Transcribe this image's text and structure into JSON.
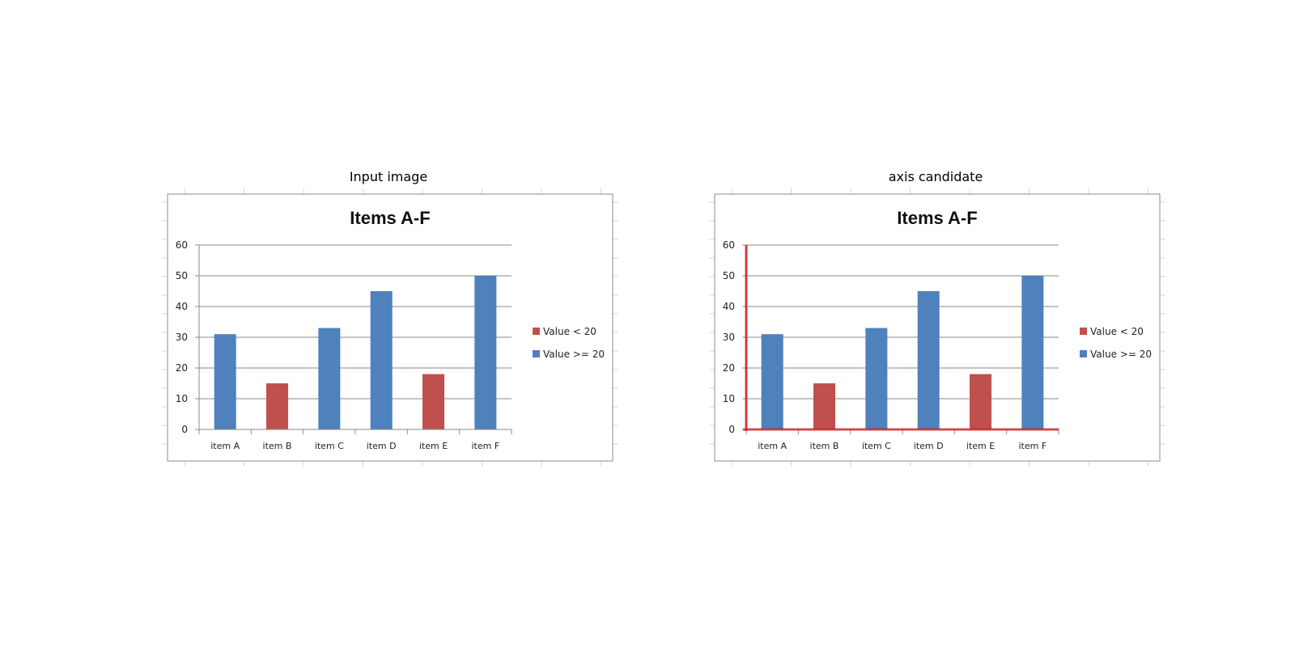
{
  "panels": [
    {
      "title": "Input image",
      "highlight_axes": false
    },
    {
      "title": "axis candidate",
      "highlight_axes": true
    }
  ],
  "colors": {
    "low": "#c0504d",
    "high": "#4f81bd",
    "grid": "#8a8a8a",
    "frame": "#8c8c8c",
    "axis_highlight": "#cc2222"
  },
  "chart_data": [
    {
      "type": "bar",
      "title": "Items A-F",
      "categories": [
        "item A",
        "item B",
        "item C",
        "item D",
        "item E",
        "item F"
      ],
      "values": [
        31,
        15,
        33,
        45,
        18,
        50
      ],
      "groups": [
        "high",
        "low",
        "high",
        "high",
        "low",
        "high"
      ],
      "ylim": [
        0,
        60
      ],
      "yticks": [
        0,
        10,
        20,
        30,
        40,
        50,
        60
      ],
      "grid": true,
      "legend": {
        "position": "right",
        "entries": [
          {
            "key": "low",
            "label": "Value < 20"
          },
          {
            "key": "high",
            "label": "Value >= 20"
          }
        ]
      }
    },
    {
      "type": "bar",
      "title": "Items A-F",
      "categories": [
        "item A",
        "item B",
        "item C",
        "item D",
        "item E",
        "item F"
      ],
      "values": [
        31,
        15,
        33,
        45,
        18,
        50
      ],
      "groups": [
        "high",
        "low",
        "high",
        "high",
        "low",
        "high"
      ],
      "ylim": [
        0,
        60
      ],
      "yticks": [
        0,
        10,
        20,
        30,
        40,
        50,
        60
      ],
      "grid": true,
      "legend": {
        "position": "right",
        "entries": [
          {
            "key": "low",
            "label": "Value < 20"
          },
          {
            "key": "high",
            "label": "Value >= 20"
          }
        ]
      }
    }
  ]
}
